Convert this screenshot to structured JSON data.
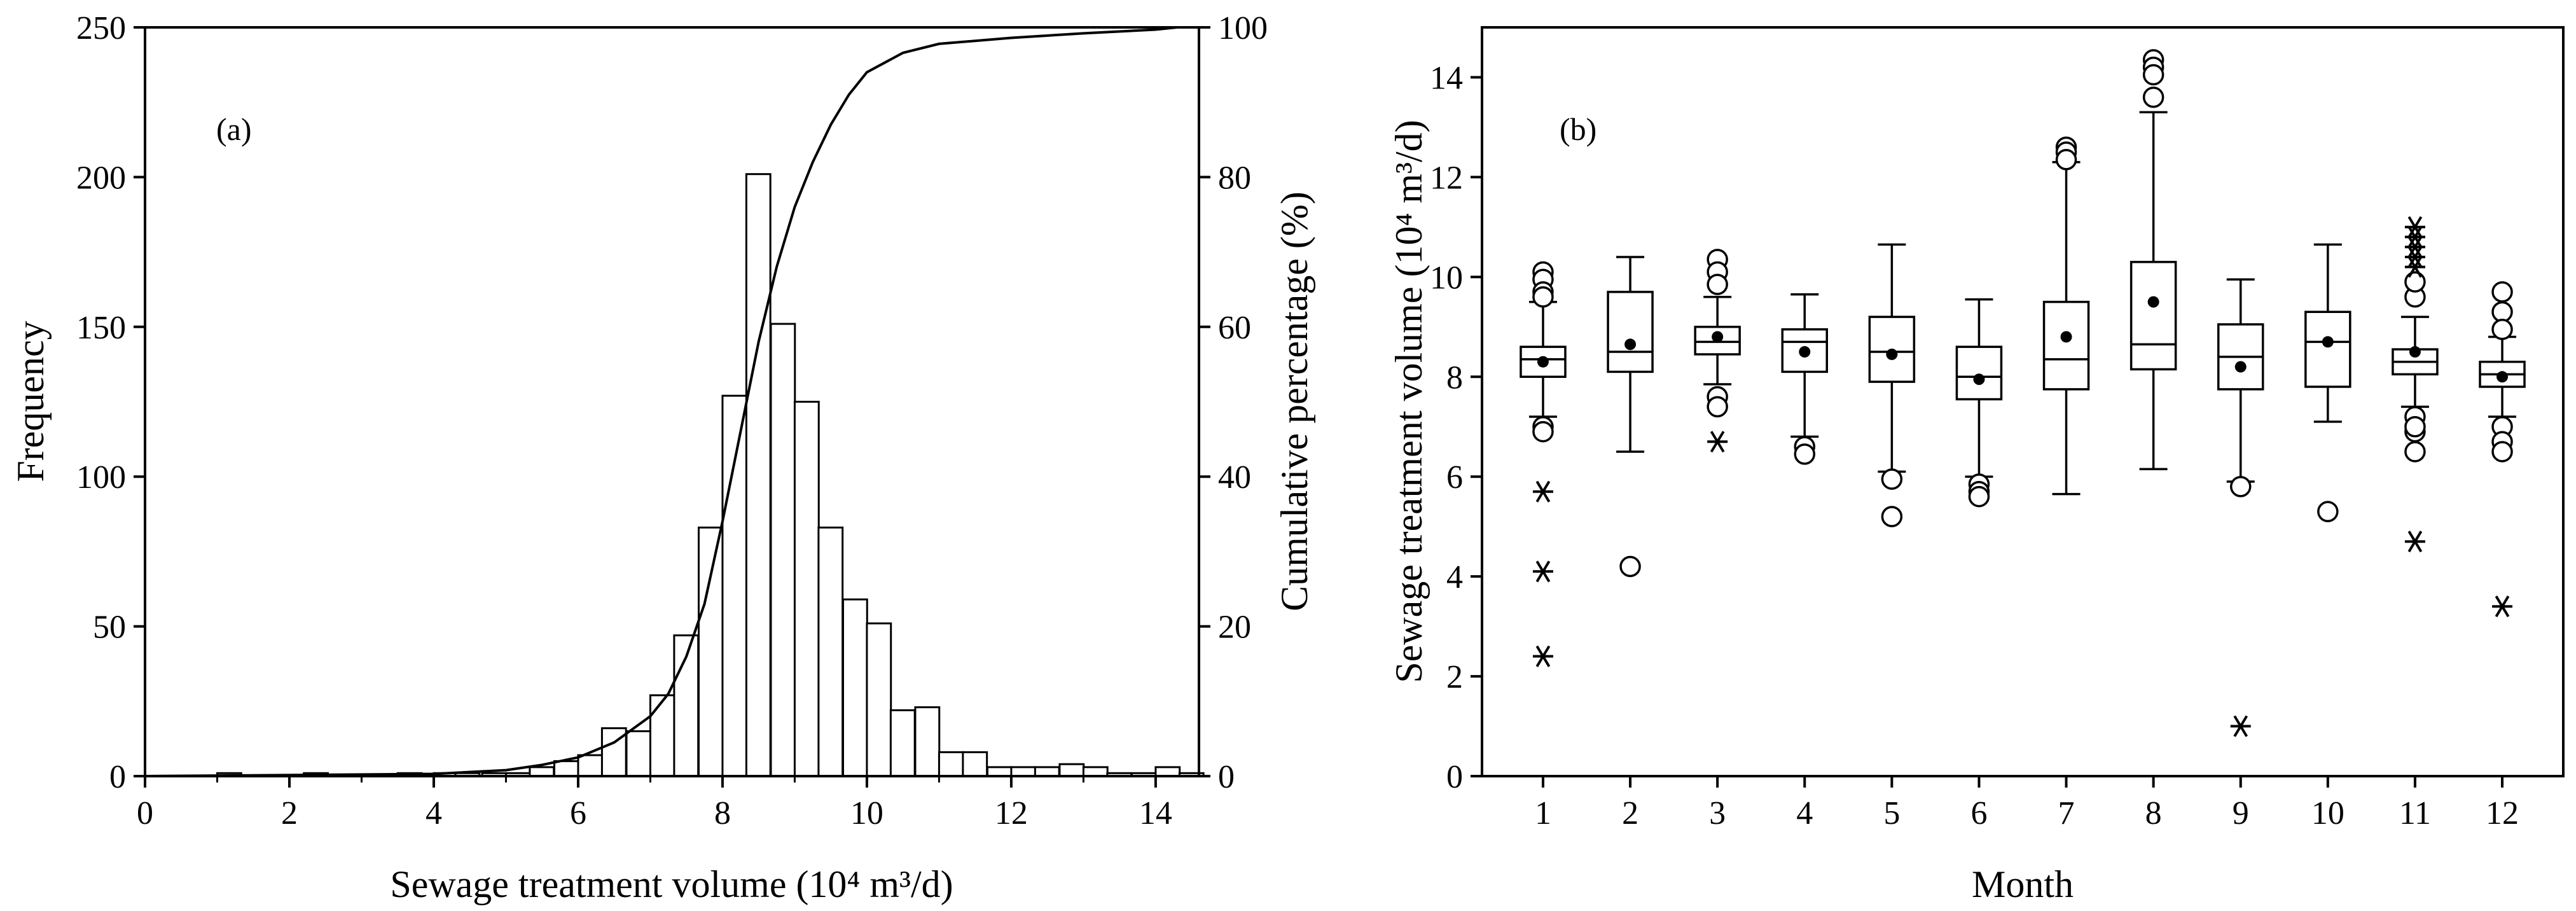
{
  "chart_data": [
    {
      "type": "bar",
      "panel_label": "(a)",
      "xlabel": "Sewage treatment volume (10⁴ m³/d)",
      "ylabel": "Frequency",
      "y2label": "Cumulative percentage (%)",
      "xlim": [
        0,
        14.6
      ],
      "ylim": [
        0,
        250
      ],
      "y2lim": [
        0,
        100
      ],
      "xticks": [
        "0",
        "2",
        "4",
        "6",
        "8",
        "10",
        "12",
        "14"
      ],
      "yticks": [
        "0",
        "50",
        "100",
        "150",
        "200",
        "250"
      ],
      "y2ticks": [
        "0",
        "20",
        "40",
        "60",
        "80",
        "100"
      ],
      "bin_width": 0.333,
      "bins": [
        {
          "x": 1.0,
          "count": 1
        },
        {
          "x": 2.2,
          "count": 1
        },
        {
          "x": 3.5,
          "count": 1
        },
        {
          "x": 4.0,
          "count": 1
        },
        {
          "x": 4.3,
          "count": 1
        },
        {
          "x": 4.67,
          "count": 1
        },
        {
          "x": 5.0,
          "count": 1
        },
        {
          "x": 5.33,
          "count": 3
        },
        {
          "x": 5.67,
          "count": 5
        },
        {
          "x": 6.0,
          "count": 7
        },
        {
          "x": 6.33,
          "count": 16
        },
        {
          "x": 6.67,
          "count": 15
        },
        {
          "x": 7.0,
          "count": 27
        },
        {
          "x": 7.33,
          "count": 47
        },
        {
          "x": 7.67,
          "count": 83
        },
        {
          "x": 8.0,
          "count": 127
        },
        {
          "x": 8.33,
          "count": 201
        },
        {
          "x": 8.67,
          "count": 151
        },
        {
          "x": 9.0,
          "count": 125
        },
        {
          "x": 9.33,
          "count": 83
        },
        {
          "x": 9.67,
          "count": 59
        },
        {
          "x": 10.0,
          "count": 51
        },
        {
          "x": 10.33,
          "count": 22
        },
        {
          "x": 10.67,
          "count": 23
        },
        {
          "x": 11.0,
          "count": 8
        },
        {
          "x": 11.33,
          "count": 8
        },
        {
          "x": 11.67,
          "count": 3
        },
        {
          "x": 12.0,
          "count": 3
        },
        {
          "x": 12.33,
          "count": 3
        },
        {
          "x": 12.67,
          "count": 4
        },
        {
          "x": 13.0,
          "count": 3
        },
        {
          "x": 13.33,
          "count": 1
        },
        {
          "x": 13.67,
          "count": 1
        },
        {
          "x": 14.0,
          "count": 3
        },
        {
          "x": 14.33,
          "count": 1
        }
      ],
      "cumulative_curve": {
        "x": [
          0,
          4,
          5,
          5.5,
          6,
          6.5,
          7,
          7.25,
          7.5,
          7.75,
          8,
          8.25,
          8.5,
          8.75,
          9,
          9.25,
          9.5,
          9.75,
          10,
          10.5,
          11,
          12,
          13,
          14,
          14.3
        ],
        "y": [
          0,
          0.3,
          0.8,
          1.5,
          2.5,
          4.5,
          8,
          11,
          16,
          23,
          34,
          46,
          58,
          68,
          76,
          82,
          87,
          91,
          94,
          96.6,
          97.8,
          98.6,
          99.2,
          99.7,
          100
        ]
      }
    },
    {
      "type": "box",
      "panel_label": "(b)",
      "xlabel": "Month",
      "ylabel": "Sewage treatment volume (10⁴ m³/d)",
      "xlim": [
        0.3,
        12.7
      ],
      "ylim": [
        0,
        15
      ],
      "yticks": [
        "0",
        "2",
        "4",
        "6",
        "8",
        "10",
        "12",
        "14"
      ],
      "categories": [
        "1",
        "2",
        "3",
        "4",
        "5",
        "6",
        "7",
        "8",
        "9",
        "10",
        "11",
        "12"
      ],
      "boxes": [
        {
          "month": "1",
          "q1": 8.0,
          "median": 8.35,
          "q3": 8.6,
          "whisker_low": 7.2,
          "whisker_high": 9.5,
          "mean": 8.3,
          "outliers": [
            10.1,
            9.95,
            9.7,
            9.6,
            7.0,
            6.9
          ],
          "extremes": [
            5.7,
            4.1,
            2.4
          ]
        },
        {
          "month": "2",
          "q1": 8.1,
          "median": 8.5,
          "q3": 9.7,
          "whisker_low": 6.5,
          "whisker_high": 10.4,
          "mean": 8.65,
          "outliers": [
            4.2
          ],
          "extremes": []
        },
        {
          "month": "3",
          "q1": 8.45,
          "median": 8.7,
          "q3": 9.0,
          "whisker_low": 7.85,
          "whisker_high": 9.6,
          "mean": 8.8,
          "outliers": [
            10.35,
            10.1,
            9.85,
            7.6,
            7.4
          ],
          "extremes": [
            6.7
          ]
        },
        {
          "month": "4",
          "q1": 8.1,
          "median": 8.7,
          "q3": 8.95,
          "whisker_low": 6.8,
          "whisker_high": 9.65,
          "mean": 8.5,
          "outliers": [
            6.6,
            6.45
          ],
          "extremes": []
        },
        {
          "month": "5",
          "q1": 7.9,
          "median": 8.5,
          "q3": 9.2,
          "whisker_low": 6.1,
          "whisker_high": 10.65,
          "mean": 8.45,
          "outliers": [
            5.95,
            5.2
          ],
          "extremes": []
        },
        {
          "month": "6",
          "q1": 7.55,
          "median": 8.0,
          "q3": 8.6,
          "whisker_low": 6.0,
          "whisker_high": 9.55,
          "mean": 7.95,
          "outliers": [
            5.85,
            5.7,
            5.6
          ],
          "extremes": []
        },
        {
          "month": "7",
          "q1": 7.75,
          "median": 8.35,
          "q3": 9.5,
          "whisker_low": 5.65,
          "whisker_high": 12.3,
          "mean": 8.8,
          "outliers": [
            12.6,
            12.5,
            12.35
          ],
          "extremes": []
        },
        {
          "month": "8",
          "q1": 8.15,
          "median": 8.65,
          "q3": 10.3,
          "whisker_low": 6.15,
          "whisker_high": 13.3,
          "mean": 9.5,
          "outliers": [
            14.35,
            14.2,
            14.05,
            13.6
          ],
          "extremes": []
        },
        {
          "month": "9",
          "q1": 7.75,
          "median": 8.4,
          "q3": 9.05,
          "whisker_low": 5.9,
          "whisker_high": 9.95,
          "mean": 8.2,
          "outliers": [
            5.8
          ],
          "extremes": [
            1.0
          ]
        },
        {
          "month": "10",
          "q1": 7.8,
          "median": 8.7,
          "q3": 9.3,
          "whisker_low": 7.1,
          "whisker_high": 10.65,
          "mean": 8.7,
          "outliers": [
            5.3
          ],
          "extremes": []
        },
        {
          "month": "11",
          "q1": 8.05,
          "median": 8.3,
          "q3": 8.55,
          "whisker_low": 7.4,
          "whisker_high": 9.2,
          "mean": 8.5,
          "outliers": [
            9.6,
            9.9,
            7.2,
            6.9,
            6.5,
            7.0
          ],
          "extremes": [
            11.0,
            10.8,
            10.6,
            10.4,
            10.2,
            4.7
          ]
        },
        {
          "month": "12",
          "q1": 7.8,
          "median": 8.05,
          "q3": 8.3,
          "whisker_low": 7.2,
          "whisker_high": 8.8,
          "mean": 8.0,
          "outliers": [
            9.7,
            9.3,
            8.95,
            7.0,
            6.7,
            6.5
          ],
          "extremes": [
            3.4
          ]
        }
      ]
    }
  ]
}
